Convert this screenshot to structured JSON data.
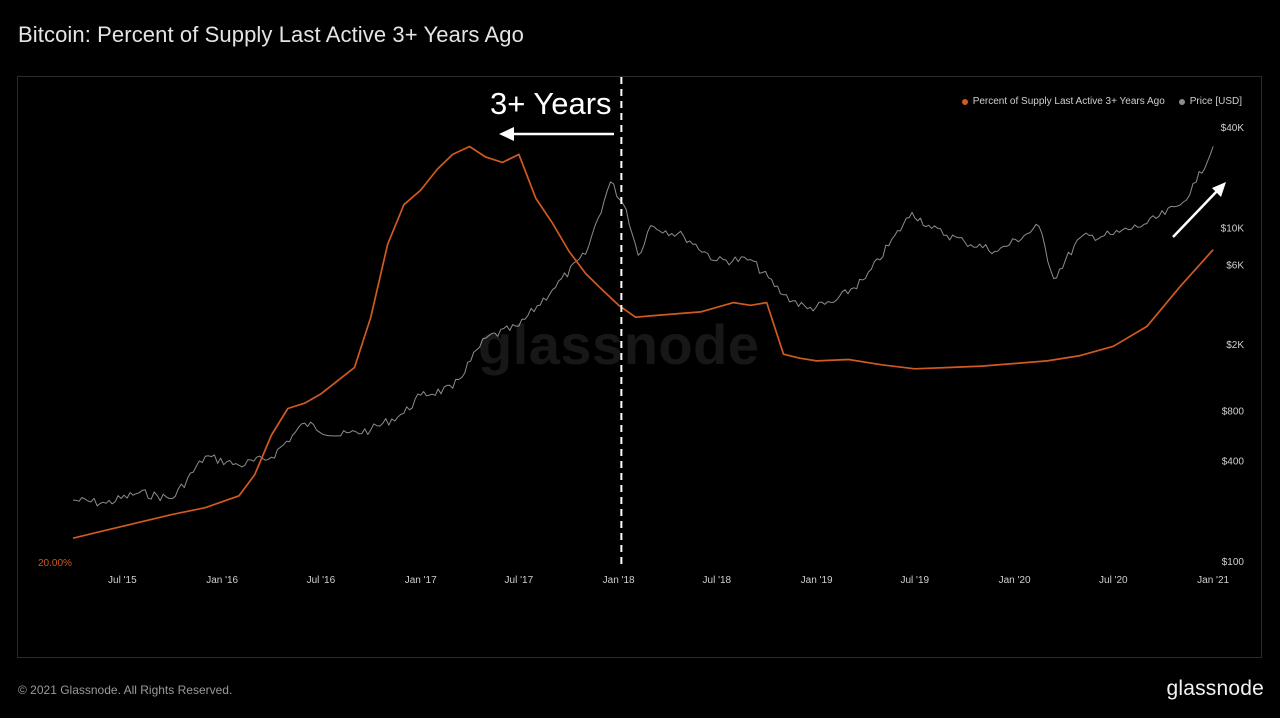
{
  "title": "Bitcoin: Percent of Supply Last Active 3+ Years Ago",
  "footer": {
    "copyright": "© 2021 Glassnode. All Rights Reserved.",
    "brand": "glassnode"
  },
  "watermark": "glassnode",
  "annotation": {
    "text": "3+ Years",
    "divider_date": "2018-01-06"
  },
  "colors": {
    "supply": "#d2591f",
    "price": "#8c8c8c",
    "background": "#000000",
    "divider": "#ffffff",
    "arrow": "#ffffff"
  },
  "chart_data": {
    "type": "line",
    "title": "Bitcoin: Percent of Supply Last Active 3+ Years Ago",
    "legend": {
      "position": "top-right",
      "entries": [
        "Percent of Supply Last Active 3+ Years Ago",
        "Price [USD]"
      ]
    },
    "x_ticks": [
      "Jul '15",
      "Jan '16",
      "Jul '16",
      "Jan '17",
      "Jul '17",
      "Jan '18",
      "Jul '18",
      "Jan '19",
      "Jul '19",
      "Jan '20",
      "Jul '20",
      "Jan '21"
    ],
    "x_tick_dates": [
      "2015-07-01",
      "2016-01-01",
      "2016-07-01",
      "2017-01-01",
      "2017-07-01",
      "2018-01-01",
      "2018-07-01",
      "2019-01-01",
      "2019-07-01",
      "2020-01-01",
      "2020-07-01",
      "2021-01-01"
    ],
    "xlim": [
      "2015-04-01",
      "2021-01-10"
    ],
    "left_axis": {
      "visible_tick": "20.00%",
      "visible_tick_value": 20
    },
    "right_axis": {
      "label": "Price [USD]",
      "scale": "log",
      "ticks": [
        "$100",
        "$400",
        "$800",
        "$2K",
        "$6K",
        "$10K",
        "$40K"
      ],
      "tick_values": [
        100,
        400,
        800,
        2000,
        6000,
        10000,
        40000
      ]
    },
    "series": [
      {
        "name": "Percent of Supply Last Active 3+ Years Ago",
        "axis": "left",
        "x": [
          "2015-04-01",
          "2015-06-01",
          "2015-08-01",
          "2015-10-01",
          "2015-12-01",
          "2016-02-01",
          "2016-03-01",
          "2016-04-01",
          "2016-05-01",
          "2016-06-01",
          "2016-07-01",
          "2016-08-01",
          "2016-09-01",
          "2016-10-01",
          "2016-11-01",
          "2016-12-01",
          "2017-01-01",
          "2017-02-01",
          "2017-03-01",
          "2017-04-01",
          "2017-05-01",
          "2017-06-01",
          "2017-07-01",
          "2017-08-01",
          "2017-09-01",
          "2017-10-01",
          "2017-11-01",
          "2017-12-01",
          "2018-01-01",
          "2018-02-01",
          "2018-03-01",
          "2018-04-01",
          "2018-06-01",
          "2018-08-01",
          "2018-09-01",
          "2018-10-01",
          "2018-11-01",
          "2018-12-01",
          "2019-01-01",
          "2019-03-01",
          "2019-05-01",
          "2019-07-01",
          "2019-09-01",
          "2019-11-01",
          "2020-01-01",
          "2020-03-01",
          "2020-05-01",
          "2020-07-01",
          "2020-09-01",
          "2020-11-01",
          "2021-01-01"
        ],
        "values": [
          21.8,
          22.4,
          23.0,
          23.6,
          24.1,
          25.0,
          26.6,
          29.6,
          31.6,
          32.0,
          32.7,
          33.7,
          34.7,
          38.5,
          44.0,
          47.0,
          48.1,
          49.7,
          50.8,
          51.4,
          50.6,
          50.2,
          50.8,
          47.5,
          45.6,
          43.5,
          41.8,
          40.6,
          39.4,
          38.5,
          38.6,
          38.7,
          38.9,
          39.6,
          39.4,
          39.6,
          35.7,
          35.4,
          35.2,
          35.3,
          34.9,
          34.6,
          34.7,
          34.8,
          35.0,
          35.2,
          35.6,
          36.3,
          37.8,
          40.8,
          43.6
        ]
      },
      {
        "name": "Price [USD]",
        "axis": "right",
        "x": [
          "2015-04-01",
          "2015-06-01",
          "2015-08-01",
          "2015-10-01",
          "2015-12-01",
          "2016-02-01",
          "2016-04-01",
          "2016-06-01",
          "2016-08-01",
          "2016-10-01",
          "2016-12-01",
          "2017-01-01",
          "2017-03-01",
          "2017-05-01",
          "2017-07-01",
          "2017-09-01",
          "2017-11-01",
          "2017-12-17",
          "2018-01-15",
          "2018-02-06",
          "2018-03-01",
          "2018-05-01",
          "2018-07-01",
          "2018-09-01",
          "2018-11-01",
          "2018-12-15",
          "2019-02-01",
          "2019-04-01",
          "2019-06-26",
          "2019-08-01",
          "2019-10-01",
          "2019-12-01",
          "2020-02-15",
          "2020-03-13",
          "2020-05-01",
          "2020-07-01",
          "2020-09-01",
          "2020-11-01",
          "2020-12-01",
          "2021-01-01"
        ],
        "values": [
          235,
          225,
          260,
          240,
          430,
          380,
          425,
          680,
          570,
          620,
          780,
          1000,
          1100,
          2200,
          2600,
          4300,
          7000,
          19000,
          13000,
          6900,
          10400,
          9000,
          6400,
          6500,
          4000,
          3300,
          3600,
          5000,
          12500,
          10000,
          8300,
          7300,
          10300,
          5000,
          8800,
          9200,
          10700,
          13800,
          19000,
          31000
        ]
      }
    ]
  }
}
